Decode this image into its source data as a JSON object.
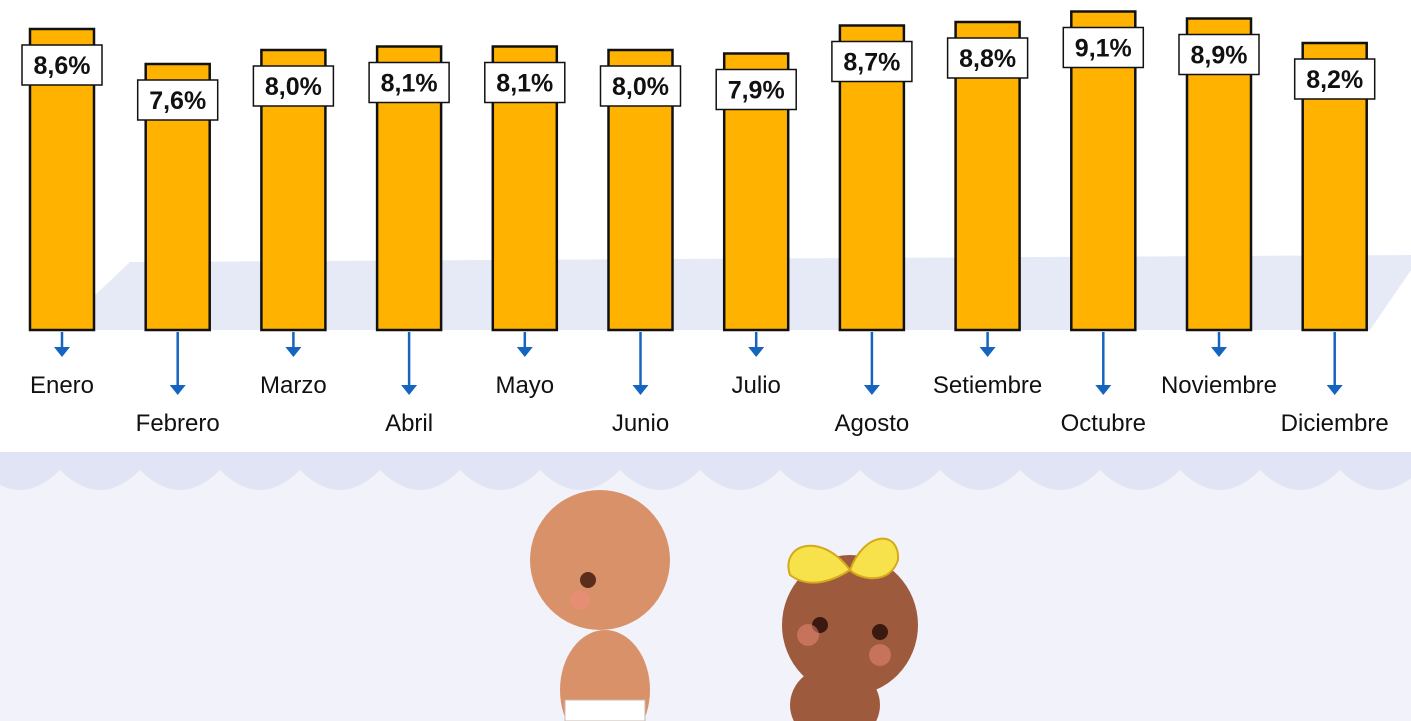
{
  "chart_data": {
    "type": "bar",
    "categories": [
      "Enero",
      "Febrero",
      "Marzo",
      "Abril",
      "Mayo",
      "Junio",
      "Julio",
      "Agosto",
      "Setiembre",
      "Octubre",
      "Noviembre",
      "Diciembre"
    ],
    "values": [
      8.6,
      7.6,
      8.0,
      8.1,
      8.1,
      8.0,
      7.9,
      8.7,
      8.8,
      9.1,
      8.9,
      8.2
    ],
    "value_labels": [
      "8,6%",
      "7,6%",
      "8,0%",
      "8,1%",
      "8,1%",
      "8,0%",
      "7,9%",
      "8,7%",
      "8,8%",
      "9,1%",
      "8,9%",
      "8,2%"
    ],
    "color": "#FFB300"
  }
}
